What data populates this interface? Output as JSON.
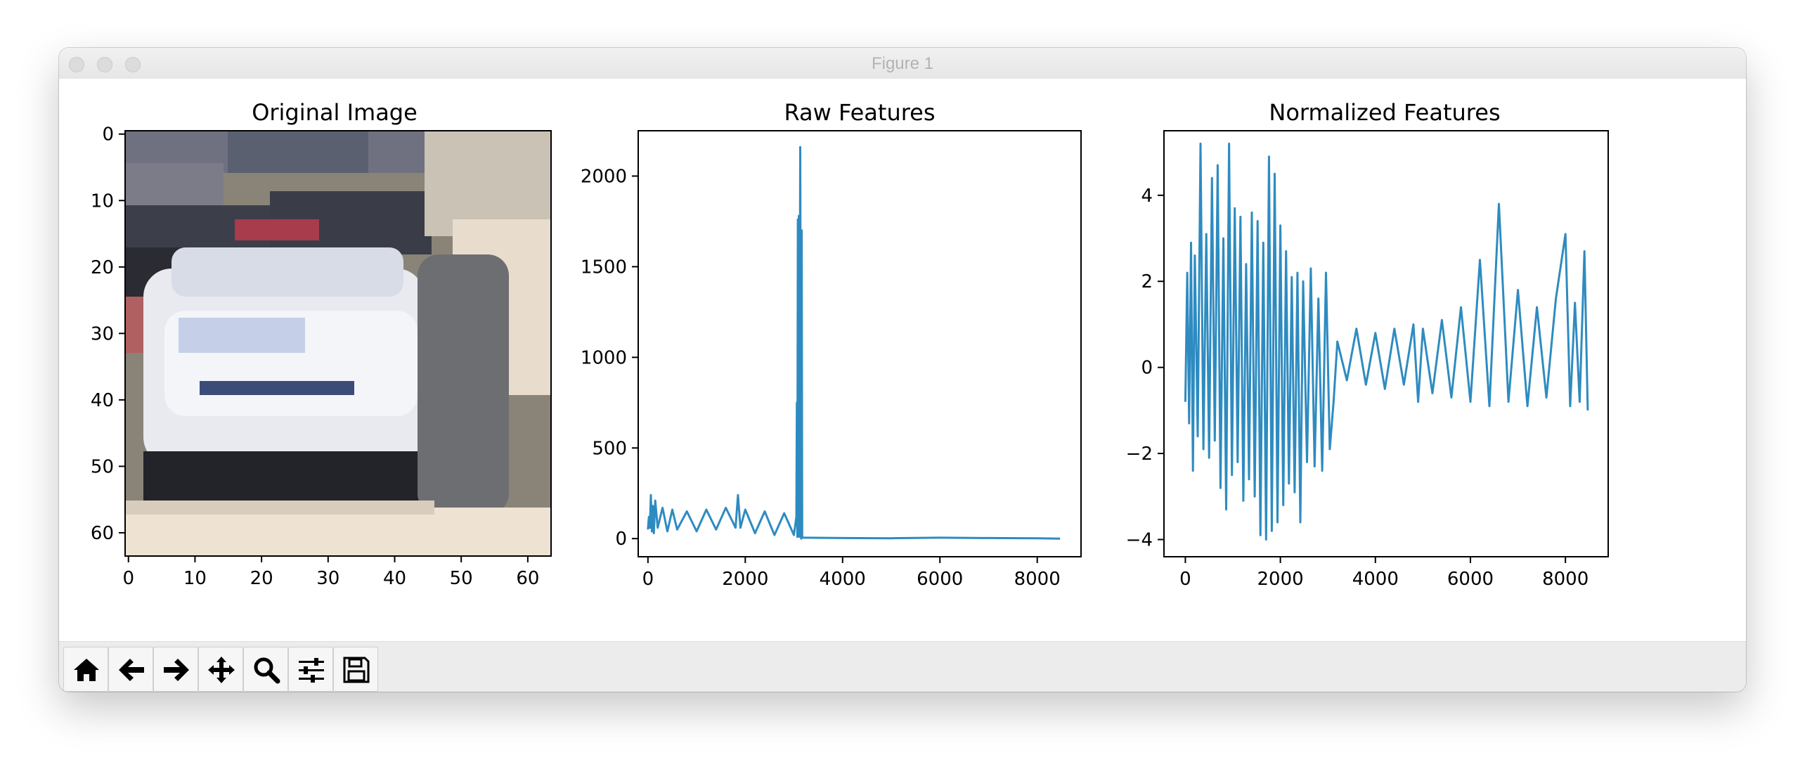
{
  "window": {
    "title": "Figure 1"
  },
  "toolbar": {
    "buttons": [
      {
        "name": "home-button",
        "icon": "home-icon"
      },
      {
        "name": "back-button",
        "icon": "arrow-left-icon"
      },
      {
        "name": "forward-button",
        "icon": "arrow-right-icon"
      },
      {
        "name": "pan-button",
        "icon": "move-icon"
      },
      {
        "name": "zoom-button",
        "icon": "search-icon"
      },
      {
        "name": "configure-subplots-button",
        "icon": "sliders-icon"
      },
      {
        "name": "save-button",
        "icon": "floppy-disk-icon"
      }
    ]
  },
  "colors": {
    "line": "#2e8bc0",
    "toolbar": "#ececec"
  },
  "panels": {
    "original": {
      "title": "Original Image",
      "x_ticks": [
        "0",
        "10",
        "20",
        "30",
        "40",
        "50",
        "60"
      ],
      "y_ticks": [
        "0",
        "10",
        "20",
        "30",
        "40",
        "50",
        "60"
      ]
    },
    "raw": {
      "title": "Raw Features"
    },
    "normalized": {
      "title": "Normalized Features"
    }
  },
  "chart_data": [
    {
      "type": "line",
      "title": "Raw Features",
      "xlim": [
        -200,
        8900
      ],
      "ylim": [
        -100,
        2250
      ],
      "x_ticks": [
        0,
        2000,
        4000,
        6000,
        8000
      ],
      "x_tick_labels": [
        "0",
        "2000",
        "4000",
        "6000",
        "8000"
      ],
      "y_ticks": [
        0,
        500,
        1000,
        1500,
        2000
      ],
      "y_tick_labels": [
        "0",
        "500",
        "1000",
        "1500",
        "2000"
      ],
      "series": [
        {
          "x": [
            0,
            20,
            40,
            60,
            80,
            100,
            120,
            150,
            200,
            300,
            400,
            500,
            600,
            800,
            1000,
            1200,
            1400,
            1600,
            1800,
            1850,
            1900,
            2000,
            2200,
            2400,
            2600,
            2800,
            3000,
            3050,
            3060,
            3070,
            3080,
            3090,
            3100,
            3110,
            3130,
            3150,
            3160,
            3170,
            3200,
            4000,
            5000,
            6000,
            7000,
            8000,
            8470
          ],
          "y": [
            50,
            120,
            60,
            240,
            40,
            180,
            30,
            210,
            60,
            170,
            40,
            160,
            50,
            150,
            40,
            160,
            50,
            170,
            60,
            240,
            60,
            160,
            30,
            150,
            20,
            140,
            20,
            120,
            750,
            10,
            1760,
            20,
            1780,
            10,
            2160,
            0,
            1700,
            5,
            5,
            3,
            2,
            5,
            3,
            2,
            0
          ]
        }
      ]
    },
    {
      "type": "line",
      "title": "Normalized Features",
      "xlim": [
        -450,
        8900
      ],
      "ylim": [
        -4.4,
        5.5
      ],
      "x_ticks": [
        0,
        2000,
        4000,
        6000,
        8000
      ],
      "x_tick_labels": [
        "0",
        "2000",
        "4000",
        "6000",
        "8000"
      ],
      "y_ticks": [
        -4,
        -2,
        0,
        2,
        4
      ],
      "y_tick_labels": [
        "−4",
        "−2",
        "0",
        "2",
        "4"
      ],
      "series": [
        {
          "x": [
            0,
            40,
            80,
            120,
            160,
            200,
            260,
            320,
            380,
            440,
            500,
            560,
            620,
            680,
            740,
            800,
            860,
            920,
            980,
            1040,
            1100,
            1160,
            1220,
            1280,
            1340,
            1400,
            1460,
            1520,
            1580,
            1640,
            1700,
            1760,
            1820,
            1880,
            1940,
            2000,
            2060,
            2120,
            2180,
            2240,
            2300,
            2360,
            2420,
            2480,
            2560,
            2640,
            2720,
            2800,
            2880,
            2960,
            3040,
            3120,
            3200,
            3400,
            3600,
            3800,
            4000,
            4200,
            4400,
            4600,
            4800,
            4900,
            5000,
            5200,
            5400,
            5600,
            5800,
            6000,
            6200,
            6400,
            6600,
            6800,
            7000,
            7200,
            7400,
            7600,
            7800,
            8000,
            8100,
            8200,
            8300,
            8400,
            8470
          ],
          "y": [
            -0.8,
            2.2,
            -1.3,
            2.9,
            -2.4,
            2.6,
            -1.6,
            5.2,
            -1.9,
            3.1,
            -2.1,
            4.4,
            -1.7,
            4.7,
            -2.8,
            3.0,
            -3.3,
            5.2,
            -2.5,
            3.7,
            -2.2,
            3.5,
            -3.1,
            2.4,
            -2.6,
            3.6,
            -3.0,
            3.4,
            -3.9,
            2.9,
            -4.0,
            4.9,
            -3.8,
            4.5,
            -3.6,
            3.3,
            -3.2,
            2.7,
            -2.7,
            2.1,
            -2.9,
            2.2,
            -3.6,
            2.0,
            -2.2,
            2.3,
            -2.3,
            1.6,
            -2.4,
            2.2,
            -1.9,
            -0.8,
            0.6,
            -0.3,
            0.9,
            -0.4,
            0.8,
            -0.5,
            0.9,
            -0.4,
            1.0,
            -0.8,
            0.9,
            -0.6,
            1.1,
            -0.7,
            1.4,
            -0.8,
            2.5,
            -0.9,
            3.8,
            -0.8,
            1.8,
            -0.9,
            1.4,
            -0.7,
            1.6,
            3.1,
            -0.9,
            1.5,
            -0.8,
            2.7,
            -1.0
          ]
        }
      ]
    }
  ]
}
